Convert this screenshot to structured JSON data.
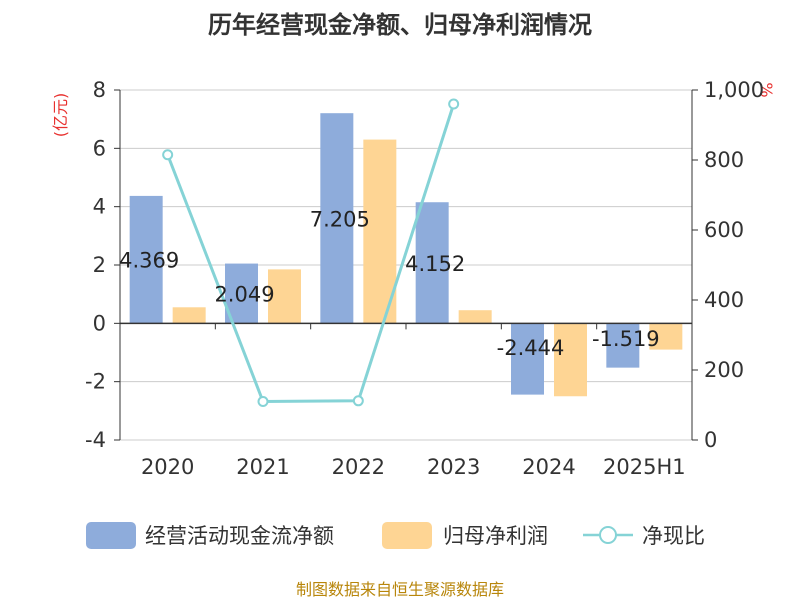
{
  "chart_data": {
    "type": "bar",
    "title": "历年经营现金净额、归母净利润情况",
    "categories": [
      "2020",
      "2021",
      "2022",
      "2023",
      "2024",
      "2025H1"
    ],
    "y_left": {
      "unit_label": "(亿元)",
      "ylim": [
        -4,
        8
      ],
      "ticks": [
        "8",
        "6",
        "4",
        "2",
        "0",
        "-2",
        "-4"
      ]
    },
    "y_right": {
      "unit_label": "%",
      "ylim": [
        0,
        1000
      ],
      "ticks": [
        "1,000",
        "800",
        "600",
        "400",
        "200",
        "0"
      ]
    },
    "series": [
      {
        "name": "经营活动现金流净额",
        "type": "bar",
        "axis": "left",
        "color": "#8eacdb",
        "values": [
          4.369,
          2.049,
          7.205,
          4.152,
          -2.444,
          -1.519
        ],
        "labels": [
          "4.369",
          "2.049",
          "7.205",
          "4.152",
          "-2.444",
          "-1.519"
        ]
      },
      {
        "name": "归母净利润",
        "type": "bar",
        "axis": "left",
        "color": "#fed594",
        "values": [
          0.55,
          1.85,
          6.3,
          0.45,
          -2.5,
          -0.9
        ]
      },
      {
        "name": "净现比",
        "type": "line",
        "axis": "right",
        "color": "#85d3d6",
        "values": [
          815,
          110,
          112,
          960,
          null,
          null
        ]
      }
    ],
    "legend_position": "bottom",
    "grid": true
  },
  "footer": {
    "source": "制图数据来自恒生聚源数据库"
  }
}
